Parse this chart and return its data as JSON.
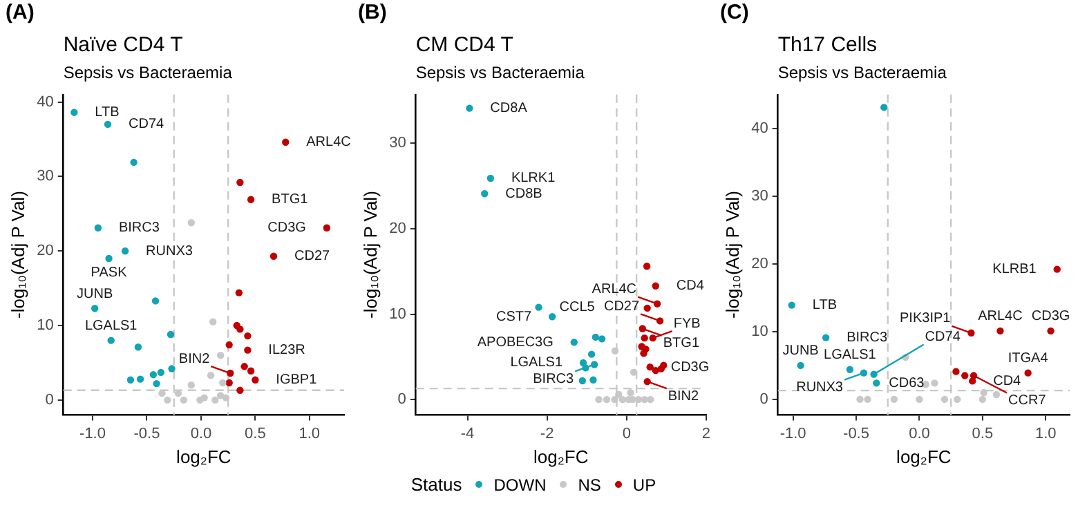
{
  "chart_data": [
    {
      "type": "scatter",
      "title": "Naïve CD4 T",
      "subtitle": "Sepsis vs Bacteraemia",
      "xlabel": "log₂FC",
      "ylabel": "-log₁₀(Adj P Val)",
      "xlim": [
        -1.27,
        1.32
      ],
      "ylim": [
        -2,
        41
      ],
      "xticks": [
        {
          "value": -1,
          "label": "-1.0"
        },
        {
          "value": -0.5,
          "label": "-0.5"
        },
        {
          "value": 0,
          "label": "0.0"
        },
        {
          "value": 0.5,
          "label": "0.5"
        },
        {
          "value": 1,
          "label": "1.0"
        }
      ],
      "yticks": [
        0,
        10,
        20,
        30,
        40
      ],
      "grid": false,
      "marker": "circle",
      "ref_lines": [
        {
          "axis": "x",
          "value": -0.25,
          "color": "#c8c8c8",
          "line_style": "dashed"
        },
        {
          "axis": "x",
          "value": 0.25,
          "color": "#c8c8c8",
          "line_style": "dashed"
        },
        {
          "axis": "y",
          "value": 1.3,
          "color": "#c8c8c8",
          "line_style": "dashed"
        }
      ],
      "series": [
        {
          "color": "#12a4b4",
          "x": [
            -1.17,
            -0.86,
            -0.62,
            -0.95,
            -0.7,
            -0.85,
            -0.98,
            -0.42,
            -0.83,
            -0.28,
            -0.58,
            -0.27,
            -0.65,
            -0.56,
            -0.44,
            -0.41,
            -0.37
          ],
          "values": [
            38.6,
            37.0,
            31.9,
            23.1,
            20.0,
            19.0,
            12.3,
            13.3,
            8.0,
            8.8,
            7.1,
            4.2,
            2.7,
            2.8,
            3.4,
            2.2,
            3.7
          ]
        },
        {
          "color": "#c8c8c8",
          "x": [
            -0.09,
            0.11,
            0.18,
            0.09,
            -0.09,
            -0.36,
            -0.31,
            -0.21,
            -0.01,
            0.13,
            0.23,
            0.03,
            -0.16,
            0.18,
            0.2
          ],
          "values": [
            23.8,
            10.5,
            6.0,
            3.3,
            2.0,
            0.9,
            0,
            0.9,
            0,
            0,
            0.3,
            0.3,
            0,
            0.6,
            2.3
          ]
        },
        {
          "color": "#c00000",
          "x": [
            0.78,
            0.36,
            0.46,
            1.16,
            0.67,
            0.35,
            0.33,
            0.36,
            0.43,
            0.26,
            0.43,
            0.27,
            0.4,
            0.46,
            0.5,
            0.26,
            0.36
          ],
          "values": [
            34.6,
            29.2,
            26.9,
            23.1,
            19.3,
            14.4,
            10.0,
            9.5,
            8.6,
            7.4,
            6.7,
            3.6,
            4.5,
            3.9,
            2.7,
            2.3,
            1.3
          ]
        }
      ],
      "annotations": [
        "(A)",
        {
          "text": "LTB",
          "x": -1.17,
          "y": 38.6
        },
        {
          "text": "CD74",
          "x": -0.86,
          "y": 37.0
        },
        {
          "text": "BIRC3",
          "x": -0.95,
          "y": 23.1
        },
        {
          "text": "RUNX3",
          "x": -0.7,
          "y": 20.0
        },
        {
          "text": "PASK",
          "x": -0.85,
          "y": 19.0
        },
        {
          "text": "JUNB",
          "x": -0.98,
          "y": 12.3
        },
        {
          "text": "LGALS1",
          "x": -0.83,
          "y": 8.0
        },
        {
          "text": "ARL4C",
          "x": 0.78,
          "y": 34.6
        },
        {
          "text": "BTG1",
          "x": 0.46,
          "y": 26.9
        },
        {
          "text": "CD3G",
          "x": 1.16,
          "y": 23.1
        },
        {
          "text": "CD27",
          "x": 0.67,
          "y": 19.3
        },
        {
          "text": "IL23R",
          "x": 0.43,
          "y": 6.7
        },
        {
          "text": "BIN2",
          "x": 0.27,
          "y": 3.6
        },
        {
          "text": "IGBP1",
          "x": 0.5,
          "y": 2.7
        }
      ]
    },
    {
      "type": "scatter",
      "title": "CM CD4 T",
      "subtitle": "Sepsis vs Bacteraemia",
      "xlabel": "log₂FC",
      "ylabel": "-log₁₀(Adj P Val)",
      "xlim": [
        -5.3,
        2
      ],
      "ylim": [
        -1.8,
        35.7
      ],
      "xticks": [
        -4,
        -2,
        0,
        2
      ],
      "yticks": [
        0,
        10,
        20,
        30
      ],
      "grid": false,
      "marker": "circle",
      "legend": "bottom",
      "legend_title": "Status",
      "ref_lines": [
        {
          "axis": "x",
          "value": -0.25,
          "color": "#c8c8c8",
          "line_style": "dashed"
        },
        {
          "axis": "x",
          "value": 0.25,
          "color": "#c8c8c8",
          "line_style": "dashed"
        },
        {
          "axis": "y",
          "value": 1.3,
          "color": "#c8c8c8",
          "line_style": "dashed"
        }
      ],
      "series": [
        {
          "name": "DOWN",
          "color": "#12a4b4",
          "x": [
            -3.95,
            -3.42,
            -3.57,
            -2.21,
            -1.87,
            -1.32,
            -0.78,
            -0.62,
            -1.09,
            -1.03,
            -0.88,
            -0.81,
            -1.11,
            -0.84
          ],
          "values": [
            34.1,
            25.9,
            24.1,
            10.8,
            9.7,
            6.7,
            7.3,
            7.1,
            4.3,
            3.7,
            5.3,
            4.1,
            2.2,
            2.3
          ]
        },
        {
          "name": "NS",
          "color": "#c8c8c8",
          "x": [
            -0.29,
            0.18,
            -0.7,
            -0.5,
            -0.3,
            -0.1,
            0.05,
            0.15,
            0.3,
            0.45,
            0.6,
            -0.2,
            0.1
          ],
          "values": [
            5.7,
            3.2,
            0,
            0,
            0,
            0,
            0,
            0,
            0,
            0,
            0,
            0.6,
            0.8
          ]
        },
        {
          "name": "UP",
          "color": "#c00000",
          "x": [
            0.51,
            0.73,
            0.52,
            0.77,
            0.4,
            0.84,
            0.45,
            0.66,
            0.38,
            0.48,
            0.43,
            0.59,
            0.87,
            0.73,
            0.93,
            0.52
          ],
          "values": [
            15.6,
            13.3,
            10.7,
            11.2,
            8.3,
            9.2,
            7.2,
            7.2,
            6.2,
            5.9,
            5.4,
            3.8,
            3.6,
            3.4,
            4.0,
            2.1
          ]
        }
      ],
      "annotations": [
        "(B)",
        {
          "text": "CD8A",
          "x": -3.95,
          "y": 34.1
        },
        {
          "text": "KLRK1",
          "x": -3.42,
          "y": 25.9
        },
        {
          "text": "CD8B",
          "x": -3.57,
          "y": 24.1
        },
        {
          "text": "CCL5",
          "x": -2.21,
          "y": 10.8
        },
        {
          "text": "CST7",
          "x": -1.87,
          "y": 9.7
        },
        {
          "text": "APOBEC3G",
          "x": -1.32,
          "y": 6.7
        },
        {
          "text": "LGALS1",
          "x": -1.09,
          "y": 4.3
        },
        {
          "text": "BIRC3",
          "x": -0.81,
          "y": 4.1
        },
        {
          "text": "BTG1",
          "x": 0.4,
          "y": 8.3
        },
        {
          "text": "CD4",
          "x": 0.73,
          "y": 13.3
        },
        {
          "text": "ARL4C",
          "x": 0.77,
          "y": 11.2
        },
        {
          "text": "CD27",
          "x": 0.84,
          "y": 9.2
        },
        {
          "text": "FYB",
          "x": 0.66,
          "y": 7.2
        },
        {
          "text": "CD3G",
          "x": 0.59,
          "y": 3.8
        },
        {
          "text": "BIN2",
          "x": 0.52,
          "y": 2.1
        }
      ]
    },
    {
      "type": "scatter",
      "title": "Th17 Cells",
      "subtitle": "Sepsis vs Bacteraemia",
      "xlabel": "log₂FC",
      "ylabel": "-log₁₀(Adj P Val)",
      "xlim": [
        -1.12,
        1.19
      ],
      "ylim": [
        -2.3,
        45
      ],
      "xticks": [
        {
          "value": -1,
          "label": "-1.0"
        },
        {
          "value": -0.5,
          "label": "-0.5"
        },
        {
          "value": 0,
          "label": "0.0"
        },
        {
          "value": 0.5,
          "label": "0.5"
        },
        {
          "value": 1,
          "label": "1.0"
        }
      ],
      "yticks": [
        0,
        10,
        20,
        30,
        40
      ],
      "grid": false,
      "marker": "circle",
      "ref_lines": [
        {
          "axis": "x",
          "value": -0.25,
          "color": "#c8c8c8",
          "line_style": "dashed"
        },
        {
          "axis": "x",
          "value": 0.25,
          "color": "#c8c8c8",
          "line_style": "dashed"
        },
        {
          "axis": "y",
          "value": 1.3,
          "color": "#c8c8c8",
          "line_style": "dashed"
        }
      ],
      "series": [
        {
          "color": "#12a4b4",
          "x": [
            -0.28,
            -1.01,
            -0.74,
            -0.94,
            -0.55,
            -0.44,
            -0.36,
            -0.34
          ],
          "values": [
            43.1,
            13.9,
            9.1,
            5.0,
            4.4,
            3.9,
            3.7,
            2.4
          ]
        },
        {
          "color": "#c8c8c8",
          "x": [
            -0.11,
            0.05,
            0.12,
            -0.47,
            -0.41,
            0.51,
            0.61,
            0.5,
            -0.2,
            0,
            0.2,
            0.3
          ],
          "values": [
            6.2,
            2.2,
            2.4,
            0,
            0,
            1.0,
            0.7,
            0,
            0,
            0,
            0,
            0
          ]
        },
        {
          "color": "#c00000",
          "x": [
            1.09,
            0.64,
            1.04,
            0.41,
            0.86,
            0.43,
            0.29,
            0.36,
            0.42
          ],
          "values": [
            19.2,
            10.1,
            10.1,
            9.8,
            3.9,
            3.5,
            4.1,
            3.5,
            2.7
          ]
        }
      ],
      "annotations": [
        "(C)",
        {
          "text": "LTB",
          "x": -1.01,
          "y": 13.9
        },
        {
          "text": "BIRC3",
          "x": -0.74,
          "y": 9.1
        },
        {
          "text": "JUNB",
          "x": -0.94,
          "y": 5.0
        },
        {
          "text": "LGALS1",
          "x": -0.55,
          "y": 4.4
        },
        {
          "text": "RUNX3",
          "x": -0.44,
          "y": 3.9
        },
        {
          "text": "CD74",
          "x": -0.36,
          "y": 3.7
        },
        {
          "text": "CD63",
          "x": -0.34,
          "y": 2.4
        },
        {
          "text": "KLRB1",
          "x": 1.09,
          "y": 19.2
        },
        {
          "text": "ARL4C",
          "x": 0.64,
          "y": 10.1
        },
        {
          "text": "CD3G",
          "x": 1.04,
          "y": 10.1
        },
        {
          "text": "PIK3IP1",
          "x": 0.41,
          "y": 9.8
        },
        {
          "text": "ITGA4",
          "x": 0.86,
          "y": 3.9
        },
        {
          "text": "CCR7",
          "x": 0.43,
          "y": 3.5
        },
        {
          "text": "CD4",
          "x": 0.42,
          "y": 2.7
        }
      ]
    }
  ]
}
